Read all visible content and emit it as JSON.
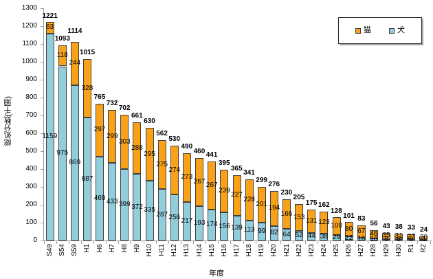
{
  "chart_data": {
    "type": "bar",
    "stacked": true,
    "title": "",
    "xlabel": "年度",
    "ylabel": "総処分数(千頭)",
    "ylim": [
      0,
      1300
    ],
    "y_ticks": [
      0,
      100,
      200,
      300,
      400,
      500,
      600,
      700,
      800,
      900,
      1000,
      1100,
      1200,
      1300
    ],
    "grid": false,
    "categories": [
      "S49",
      "S54",
      "S59",
      "H1",
      "H6",
      "H7",
      "H8",
      "H9",
      "H10",
      "H11",
      "H12",
      "H13",
      "H14",
      "H15",
      "H16",
      "H17",
      "H18",
      "H19",
      "H20",
      "H21",
      "H22",
      "H23",
      "H24",
      "H25",
      "H26",
      "H27",
      "H28",
      "H29",
      "H30",
      "R1",
      "R2"
    ],
    "series": [
      {
        "name": "犬",
        "color": "#92CDDC",
        "values": [
          1159,
          975,
          869,
          687,
          469,
          433,
          399,
          372,
          335,
          287,
          256,
          217,
          193,
          174,
          156,
          139,
          113,
          99,
          82,
          64,
          52,
          44,
          38,
          29,
          22,
          16,
          10,
          8,
          8,
          6,
          4
        ]
      },
      {
        "name": "猫",
        "color": "#FAA11A",
        "values": [
          63,
          118,
          244,
          328,
          297,
          299,
          303,
          288,
          295,
          275,
          274,
          273,
          267,
          267,
          239,
          227,
          228,
          201,
          194,
          166,
          153,
          131,
          123,
          100,
          80,
          67,
          46,
          35,
          31,
          27,
          20
        ]
      }
    ],
    "totals": [
      1221,
      1093,
      1114,
      1015,
      765,
      732,
      702,
      661,
      630,
      562,
      530,
      490,
      460,
      441,
      395,
      365,
      341,
      299,
      276,
      230,
      205,
      175,
      162,
      128,
      101,
      83,
      56,
      43,
      38,
      33,
      24
    ],
    "legend": {
      "position": "top-right",
      "entries": [
        {
          "label": "猫",
          "color": "#FAA11A"
        },
        {
          "label": "犬",
          "color": "#92CDDC"
        }
      ]
    }
  }
}
